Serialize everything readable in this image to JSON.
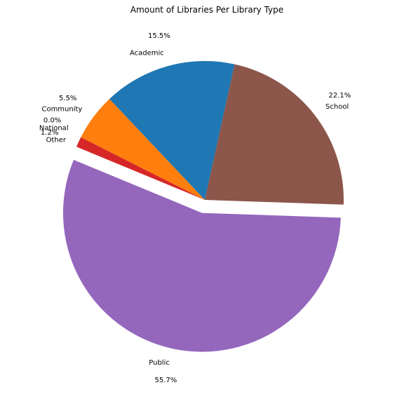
{
  "chart_data": {
    "type": "pie",
    "title": "Amount of Libraries Per Library Type",
    "slices": [
      {
        "label": "Academic",
        "pct_label": "15.5%",
        "value": 15.5,
        "color": "#1f77b4",
        "explode": false
      },
      {
        "label": "Community",
        "pct_label": "5.5%",
        "value": 5.5,
        "color": "#ff7f0e",
        "explode": false
      },
      {
        "label": "National",
        "pct_label": "0.0%",
        "value": 0.0,
        "color": "#2ca02c",
        "explode": false
      },
      {
        "label": "Other",
        "pct_label": "1.2%",
        "value": 1.2,
        "color": "#d62728",
        "explode": false
      },
      {
        "label": "Public",
        "pct_label": "55.7%",
        "value": 55.7,
        "color": "#9467bd",
        "explode": true
      },
      {
        "label": "School",
        "pct_label": "22.1%",
        "value": 22.1,
        "color": "#8c564b",
        "explode": false
      }
    ]
  }
}
